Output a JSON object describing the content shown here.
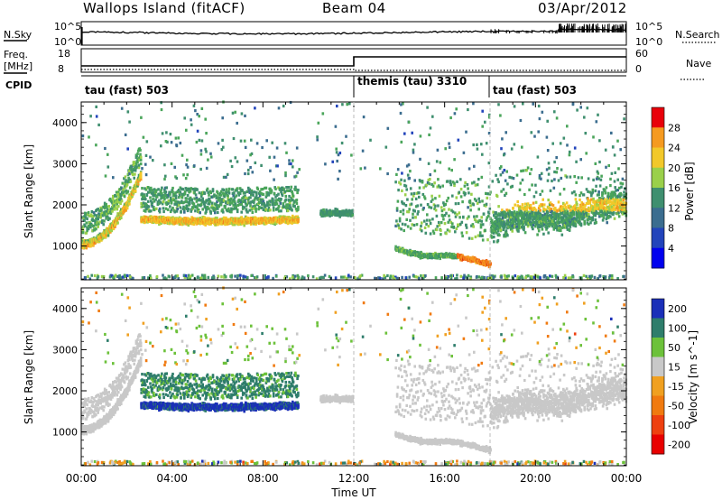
{
  "header": {
    "station": "Wallops Island (fitACF)",
    "beam": "Beam 04",
    "date": "03/Apr/2012"
  },
  "panels": {
    "noise": {
      "left_label": "N.Sky",
      "right_label": "N.Search",
      "left_ticks": [
        "10^5",
        "10^0"
      ],
      "right_ticks": [
        "10^5",
        "10^0"
      ]
    },
    "freq": {
      "left_label_1": "Freq.",
      "left_label_2": "[MHz]",
      "right_label": "Nave",
      "left_ticks": [
        "18",
        "8"
      ],
      "right_ticks": [
        "60",
        "0"
      ]
    },
    "cpid": {
      "label": "CPID",
      "segments": [
        "tau (fast) 503",
        "themis (tau) 3310",
        "tau (fast) 503"
      ]
    }
  },
  "chart_data": [
    {
      "type": "heatmap",
      "title": "",
      "parameter": "Power",
      "colorbar_label": "Power [dB]",
      "colorbar_ticks": [
        4,
        8,
        12,
        16,
        20,
        24,
        28
      ],
      "colorbar_range": [
        0,
        30
      ],
      "xlabel": "",
      "ylabel": "Slant Range [km]",
      "x_ticks": [
        "00:00",
        "04:00",
        "08:00",
        "12:00",
        "16:00",
        "20:00",
        "00:00"
      ],
      "y_ticks": [
        1000,
        2000,
        3000,
        4000
      ],
      "xlim_hours": [
        0,
        24
      ],
      "ylim_km": [
        180,
        4500
      ],
      "features": [
        {
          "name": "morning band",
          "t_start": 0.0,
          "t_end": 2.6,
          "range_start_km": 1050,
          "range_end_km": 2800,
          "peak_power_db": 24
        },
        {
          "name": "main band",
          "t_start": 2.6,
          "t_end": 9.5,
          "range_km": 1600,
          "peak_power_db": 24
        },
        {
          "name": "patch 10-11 UT",
          "t_start": 10.5,
          "t_end": 11.9,
          "range_km": 1800,
          "peak_power_db": 12
        },
        {
          "name": "evening echo",
          "t_start": 13.8,
          "t_end": 18.0,
          "range_start_km": 900,
          "range_end_km": 600,
          "peak_power_db": 28
        },
        {
          "name": "late band",
          "t_start": 18.0,
          "t_end": 24.0,
          "range_km": 1500,
          "peak_power_db": 20
        }
      ]
    },
    {
      "type": "heatmap",
      "title": "",
      "parameter": "Velocity",
      "colorbar_label": "Velocity [m s^-1]",
      "colorbar_ticks": [
        200,
        100,
        50,
        15,
        -15,
        -50,
        -100,
        -200
      ],
      "colorbar_range": [
        -250,
        250
      ],
      "xlabel": "Time UT",
      "ylabel": "Slant Range [km]",
      "x_ticks": [
        "00:00",
        "04:00",
        "08:00",
        "12:00",
        "16:00",
        "20:00",
        "00:00"
      ],
      "y_ticks": [
        1000,
        2000,
        3000,
        4000
      ],
      "xlim_hours": [
        0,
        24
      ],
      "ylim_km": [
        180,
        4500
      ],
      "features": [
        {
          "name": "ground scatter morning",
          "t_start": 0.0,
          "t_end": 2.6,
          "velocity_mps": 0
        },
        {
          "name": "main band",
          "t_start": 2.6,
          "t_end": 9.5,
          "range_km": 1650,
          "velocity_mps": 150
        },
        {
          "name": "evening ground scatter",
          "t_start": 12.0,
          "t_end": 24.0,
          "velocity_mps": 0
        }
      ]
    }
  ]
}
